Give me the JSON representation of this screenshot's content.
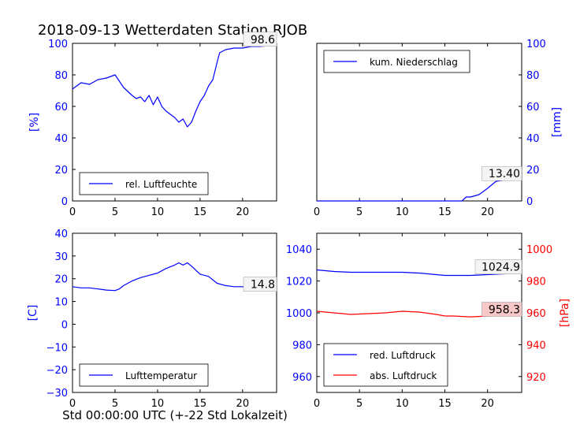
{
  "figure": {
    "title": "2018-09-13 Wetterdaten Station RJOB",
    "xlabel": "Std 00:00:00 UTC (+-22 Std Lokalzeit)"
  },
  "colors": {
    "series_blue": "#0000ff",
    "series_red": "#ff0000",
    "axis": "#000000",
    "badge_bg": "#f8c8c8"
  },
  "chart_data": [
    {
      "id": "humidity",
      "type": "line",
      "ylabel": "[%]",
      "xlim": [
        0,
        24
      ],
      "ylim": [
        0,
        100
      ],
      "xticks": [
        "0",
        "5",
        "10",
        "15",
        "20"
      ],
      "yticks": [
        "0",
        "20",
        "40",
        "60",
        "80",
        "100"
      ],
      "legend": "lower-left",
      "annotation": "98.6",
      "series": [
        {
          "name": "rel. Luftfeuchte",
          "color": "#0000ff",
          "x": [
            0,
            0.5,
            1,
            2,
            3,
            4,
            4.5,
            5,
            5.5,
            6,
            7,
            7.5,
            8,
            8.5,
            9,
            9.5,
            10,
            10.5,
            11,
            11.5,
            12,
            12.5,
            13,
            13.5,
            14,
            14.5,
            15,
            15.5,
            16,
            16.5,
            17,
            17.3,
            18,
            19,
            20,
            21,
            22,
            23,
            24
          ],
          "y": [
            71,
            73,
            75,
            74,
            77,
            78,
            79,
            80,
            76,
            72,
            67,
            65,
            66,
            63,
            67,
            61,
            66,
            60,
            57,
            55,
            53,
            50,
            52,
            47,
            50,
            57,
            63,
            67,
            73,
            77,
            88,
            94,
            96,
            97,
            97,
            98,
            98,
            98.5,
            98.6
          ]
        }
      ]
    },
    {
      "id": "precip",
      "type": "line",
      "ylabel": "[mm]",
      "xlim": [
        0,
        24
      ],
      "ylim": [
        0,
        100
      ],
      "xticks": [
        "0",
        "5",
        "10",
        "15",
        "20"
      ],
      "yticks": [
        "0",
        "20",
        "40",
        "60",
        "80",
        "100"
      ],
      "legend": "top-left",
      "annotation": "13.40",
      "series": [
        {
          "name": "kum. Niederschlag",
          "color": "#0000ff",
          "x": [
            0,
            17,
            17.5,
            18,
            19,
            20,
            21,
            22,
            23,
            24
          ],
          "y": [
            0,
            0,
            2.5,
            2.5,
            4,
            8,
            12.5,
            13.2,
            13.4,
            13.4
          ]
        }
      ]
    },
    {
      "id": "temperature",
      "type": "line",
      "ylabel": "[C]",
      "xlim": [
        0,
        24
      ],
      "ylim": [
        -30,
        40
      ],
      "xticks": [
        "0",
        "5",
        "10",
        "15",
        "20"
      ],
      "yticks": [
        "−30",
        "−20",
        "−10",
        "0",
        "10",
        "20",
        "30",
        "40"
      ],
      "legend": "lower-left",
      "annotation": "14.8",
      "series": [
        {
          "name": "Lufttemperatur",
          "color": "#0000ff",
          "x": [
            0,
            1,
            2,
            3,
            4,
            5,
            5.5,
            6,
            7,
            8,
            9,
            10,
            11,
            12,
            12.5,
            13,
            13.5,
            14,
            15,
            16,
            17,
            18,
            19,
            20,
            21,
            22,
            23,
            24
          ],
          "y": [
            16.5,
            16,
            16,
            15.5,
            15,
            14.8,
            15.5,
            17,
            19,
            20.5,
            21.5,
            22.5,
            24.5,
            26,
            27,
            26,
            27,
            25.5,
            22,
            21,
            18,
            17,
            16.5,
            16.5,
            15.5,
            15,
            15,
            14.8
          ]
        }
      ]
    },
    {
      "id": "pressure",
      "type": "line",
      "ylabel": "[hPa]",
      "xlim": [
        0,
        24
      ],
      "ylim_left": [
        950,
        1050
      ],
      "ylim_right": [
        910,
        1010
      ],
      "xticks": [
        "0",
        "5",
        "10",
        "15",
        "20"
      ],
      "yticks_left": [
        "960",
        "980",
        "1000",
        "1020",
        "1040"
      ],
      "yticks_right": [
        "920",
        "940",
        "960",
        "980",
        "1000"
      ],
      "legend": "lower-left",
      "annotations": [
        "1024.9",
        "958.3"
      ],
      "series": [
        {
          "name": "red. Luftdruck",
          "color": "#0000ff",
          "axis": "left",
          "x": [
            0,
            2,
            4,
            6,
            8,
            10,
            12,
            14,
            15,
            16,
            18,
            20,
            22,
            24
          ],
          "y": [
            1027,
            1026,
            1025.5,
            1025.5,
            1025.5,
            1025.5,
            1025,
            1024,
            1023.5,
            1023.5,
            1023.5,
            1024,
            1024.5,
            1024.9
          ]
        },
        {
          "name": "abs. Luftdruck",
          "color": "#ff0000",
          "axis": "right",
          "x": [
            0,
            2,
            4,
            6,
            8,
            10,
            12,
            14,
            15,
            16,
            18,
            20,
            22,
            24
          ],
          "y": [
            961,
            960,
            959,
            959.5,
            960,
            961,
            960.5,
            959,
            958,
            958,
            957.5,
            958,
            958.3,
            958.3
          ]
        }
      ]
    }
  ]
}
